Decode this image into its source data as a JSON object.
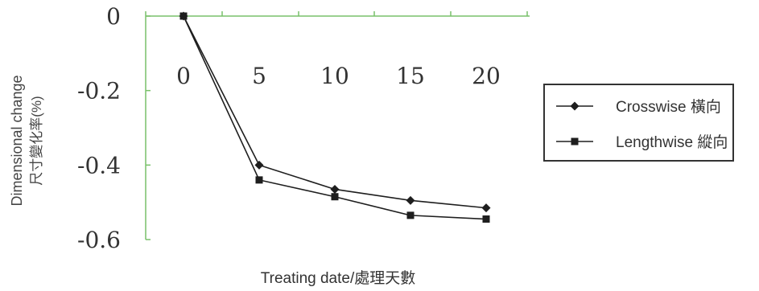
{
  "colors": {
    "axis": "#79c16a",
    "series": "#1e1e1e",
    "text": "#333333",
    "legend_border": "#333333"
  },
  "chart_data": {
    "type": "line",
    "title": "",
    "xlabel": "Treating date/處理天數",
    "ylabel_line1": "Dimensional change",
    "ylabel_line2": "尺寸變化率(%)",
    "x_ticks": [
      "0",
      "5",
      "10",
      "15",
      "20"
    ],
    "y_ticks": [
      "0",
      "-0.2",
      "-0.4",
      "-0.6"
    ],
    "x": [
      0,
      5,
      10,
      15,
      20
    ],
    "xlim": [
      0,
      20
    ],
    "ylim": [
      -0.6,
      0
    ],
    "grid": false,
    "legend_position": "right",
    "series": [
      {
        "name": "Crosswise 橫向",
        "marker": "diamond",
        "values": [
          0,
          -0.4,
          -0.465,
          -0.495,
          -0.515
        ]
      },
      {
        "name": "Lengthwise 縱向",
        "marker": "square",
        "values": [
          0,
          -0.44,
          -0.485,
          -0.535,
          -0.545
        ]
      }
    ]
  }
}
